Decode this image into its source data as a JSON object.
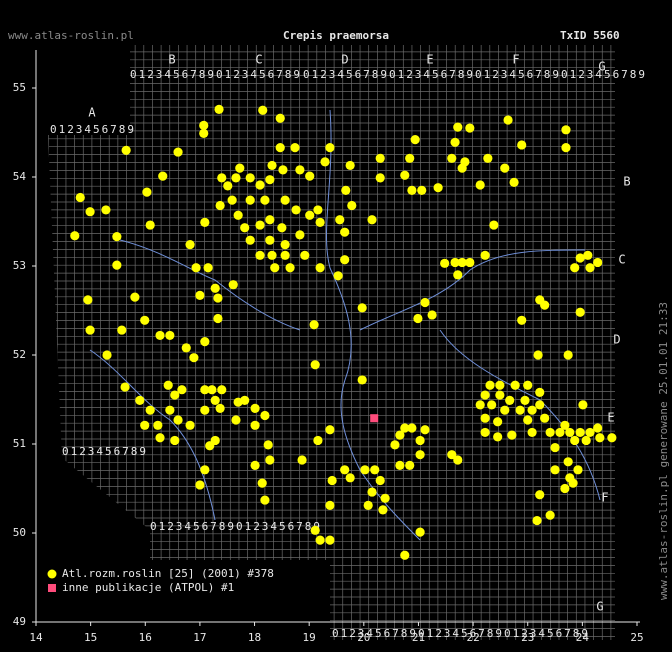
{
  "chart_data": {
    "type": "scatter",
    "site": "www.atlas-roslin.pl",
    "title": "Crepis praemorsa",
    "taxon_id": "TxID 5560",
    "footer": "www.atlas-roslin.pl generowane 25.01.01 21:33",
    "grid_columns": [
      "A",
      "B",
      "C",
      "D",
      "E",
      "F",
      "G"
    ],
    "grid_digits": "0123456789",
    "xlim": [
      14,
      25
    ],
    "xticks": [
      14,
      15,
      16,
      17,
      18,
      19,
      20,
      21,
      22,
      23,
      24,
      25
    ],
    "ylim": [
      49,
      55
    ],
    "yticks": [
      49,
      50,
      51,
      52,
      53,
      54,
      55
    ],
    "series": [
      {
        "name": "Atl.rozm.roslin [25] (2001) #378",
        "color": "#ffff00",
        "marker": "circle",
        "x": [
          17.35,
          18.15,
          18.47,
          17.07,
          17.07,
          16.6,
          18.47,
          18.74,
          19.38,
          19.29,
          18.32,
          17.73,
          17.66,
          17.4,
          17.92,
          17.51,
          18.1,
          18.28,
          18.52,
          18.83,
          19.01,
          19.75,
          20.3,
          20.84,
          20.94,
          21.72,
          21.94,
          22.64,
          23.7,
          23.7,
          21.67,
          21.61,
          21.8,
          22.27,
          22.58,
          22.89,
          22.75,
          22.13,
          21.85,
          21.06,
          21.36,
          20.75,
          20.88,
          20.3,
          19.67,
          19.78,
          19.16,
          18.76,
          18.56,
          18.19,
          17.92,
          17.59,
          17.37,
          17.09,
          17.7,
          17.82,
          18.1,
          18.28,
          18.5,
          18.83,
          19.01,
          19.2,
          19.56,
          20.15,
          17.92,
          18.28,
          18.56,
          18.1,
          18.32,
          18.56,
          18.92,
          18.37,
          18.65,
          19.2,
          19.53,
          19.65,
          19.65,
          16.82,
          16.09,
          16.03,
          16.32,
          15.65,
          14.81,
          14.99,
          15.28,
          14.71,
          15.48,
          15.48,
          14.95,
          14.99,
          15.57,
          15.3,
          15.81,
          15.99,
          16.27,
          16.45,
          16.75,
          16.89,
          17.09,
          17.33,
          17.33,
          17.28,
          17.0,
          17.61,
          16.93,
          17.15,
          22.38,
          22.22,
          21.67,
          21.8,
          21.94,
          21.48,
          21.72,
          21.12,
          21.25,
          20.99,
          19.97,
          19.09,
          19.11,
          19.97,
          23.22,
          23.31,
          22.89,
          23.19,
          23.74,
          23.96,
          23.96,
          24.1,
          24.28,
          23.86,
          24.14,
          24.01,
          22.31,
          22.49,
          22.77,
          23.0,
          23.22,
          22.49,
          22.22,
          22.34,
          22.67,
          22.95,
          23.22,
          22.13,
          22.58,
          22.86,
          23.08,
          22.22,
          22.45,
          23.0,
          23.31,
          23.41,
          23.59,
          23.77,
          23.96,
          24.14,
          24.32,
          24.54,
          23.86,
          24.07,
          24.28,
          23.68,
          23.08,
          22.71,
          22.45,
          22.22,
          23.5,
          23.74,
          23.92,
          23.77,
          23.5,
          23.68,
          23.83,
          23.22,
          23.41,
          23.17,
          15.63,
          15.9,
          15.99,
          16.23,
          16.42,
          16.54,
          16.67,
          16.45,
          16.6,
          16.82,
          16.54,
          16.27,
          16.09,
          17.09,
          17.22,
          17.4,
          17.37,
          17.09,
          17.28,
          17.7,
          17.82,
          18.01,
          18.19,
          17.66,
          18.01,
          18.25,
          18.28,
          18.01,
          17.28,
          17.09,
          17.0,
          18.14,
          18.19,
          19.16,
          19.38,
          19.65,
          19.75,
          20.02,
          20.2,
          20.3,
          20.15,
          20.39,
          20.66,
          20.84,
          21.03,
          20.57,
          20.66,
          20.75,
          20.88,
          21.03,
          21.12,
          21.61,
          21.72,
          20.35,
          20.08,
          19.38,
          19.11,
          19.2,
          19.38,
          21.03,
          20.75,
          19.42,
          18.87,
          17.18
        ],
        "y": [
          54.76,
          54.75,
          54.66,
          54.58,
          54.49,
          54.28,
          54.33,
          54.33,
          54.33,
          54.17,
          54.13,
          54.1,
          53.99,
          53.99,
          53.99,
          53.9,
          53.91,
          53.97,
          54.08,
          54.08,
          54.01,
          54.13,
          54.21,
          54.21,
          54.42,
          54.56,
          54.55,
          54.64,
          54.53,
          54.33,
          54.39,
          54.21,
          54.1,
          54.21,
          54.1,
          54.36,
          53.94,
          53.91,
          54.17,
          53.85,
          53.88,
          54.02,
          53.85,
          53.99,
          53.85,
          53.68,
          53.63,
          53.63,
          53.74,
          53.74,
          53.74,
          53.74,
          53.68,
          53.49,
          53.57,
          53.43,
          53.46,
          53.52,
          53.43,
          53.35,
          53.57,
          53.49,
          53.52,
          53.52,
          53.29,
          53.29,
          53.24,
          53.12,
          53.12,
          53.12,
          53.12,
          52.98,
          52.98,
          52.98,
          52.89,
          53.07,
          53.38,
          53.24,
          53.46,
          53.83,
          54.01,
          54.3,
          53.77,
          53.61,
          53.63,
          53.34,
          53.33,
          53.01,
          52.62,
          52.28,
          52.28,
          52.0,
          52.65,
          52.39,
          52.22,
          52.22,
          52.08,
          51.97,
          52.15,
          52.41,
          52.64,
          52.75,
          52.67,
          52.79,
          52.98,
          52.98,
          53.46,
          53.12,
          53.04,
          53.04,
          53.04,
          53.03,
          52.9,
          52.59,
          52.45,
          52.41,
          52.53,
          52.34,
          51.89,
          51.72,
          52.62,
          52.56,
          52.39,
          52.0,
          52.0,
          52.48,
          53.09,
          53.12,
          53.04,
          52.98,
          52.98,
          51.44,
          51.66,
          51.66,
          51.66,
          51.66,
          51.58,
          51.55,
          51.55,
          51.44,
          51.49,
          51.49,
          51.44,
          51.44,
          51.38,
          51.38,
          51.38,
          51.29,
          51.25,
          51.27,
          51.29,
          51.13,
          51.13,
          51.13,
          51.13,
          51.13,
          51.07,
          51.07,
          51.04,
          51.04,
          51.18,
          51.21,
          51.13,
          51.1,
          51.08,
          51.13,
          50.96,
          50.8,
          50.71,
          50.62,
          50.71,
          50.5,
          50.56,
          50.43,
          50.2,
          50.14,
          51.64,
          51.49,
          51.21,
          51.21,
          51.66,
          51.55,
          51.61,
          51.38,
          51.27,
          51.21,
          51.04,
          51.07,
          51.38,
          51.61,
          51.61,
          51.61,
          51.4,
          51.38,
          51.49,
          51.47,
          51.49,
          51.4,
          51.32,
          51.27,
          51.21,
          50.99,
          50.82,
          50.76,
          51.04,
          50.71,
          50.54,
          50.56,
          50.37,
          51.04,
          51.16,
          50.71,
          50.62,
          50.71,
          50.71,
          50.59,
          50.46,
          50.39,
          50.76,
          50.76,
          50.88,
          50.99,
          51.1,
          51.18,
          51.18,
          51.04,
          51.16,
          50.88,
          50.82,
          50.26,
          50.31,
          50.31,
          50.03,
          49.92,
          49.92,
          50.01,
          49.75,
          50.59,
          50.82,
          50.98
        ]
      },
      {
        "name": "inne publikacje (ATPOL) #1",
        "color": "#ff4c7c",
        "marker": "square",
        "x": [
          20.19
        ],
        "y": [
          51.29
        ]
      }
    ]
  }
}
